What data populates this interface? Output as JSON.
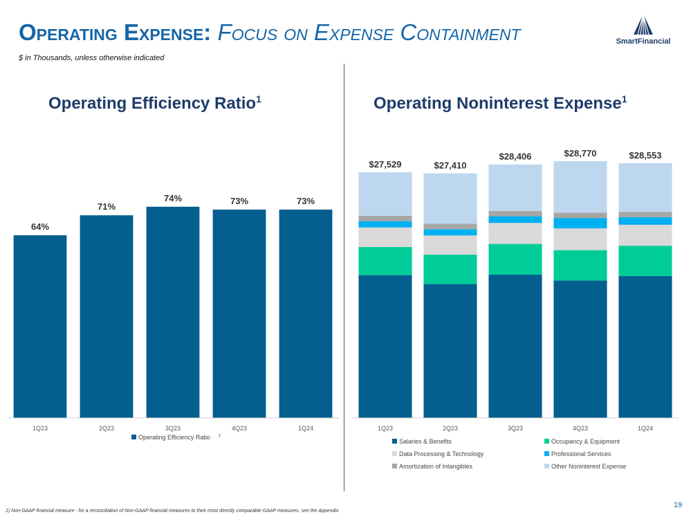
{
  "header": {
    "title_main": "Operating Expense:",
    "title_sub": "Focus on Expense Containment",
    "subtitle": "$ in Thousands, unless otherwise indicated"
  },
  "logo": {
    "name": "SmartFinancial"
  },
  "left_title": {
    "text": "Operating Efficiency Ratio",
    "sup": "1"
  },
  "right_title": {
    "text": "Operating Noninterest Expense",
    "sup": "1"
  },
  "footnote": "1) Non-GAAP financial measure - for a reconciliation of Non-GAAP financial measures to their most directly comparable GAAP measures, see the Appendix",
  "page_number": "19",
  "colors": {
    "title_blue": "#1565a7",
    "navy": "#1d3b6a",
    "bar_blue": "#045e8f"
  },
  "chart_data": [
    {
      "type": "bar",
      "title": "Operating Efficiency Ratio",
      "categories": [
        "1Q23",
        "2Q23",
        "3Q23",
        "4Q23",
        "1Q24"
      ],
      "values": [
        64,
        71,
        74,
        73,
        73
      ],
      "labels": [
        "64%",
        "71%",
        "74%",
        "73%",
        "73%"
      ],
      "series_name": "Operating Efficiency Ratio",
      "legend_sup": "1",
      "ylim": [
        0,
        80
      ],
      "color": "#045e8f"
    },
    {
      "type": "bar",
      "stacked": true,
      "title": "Operating Noninterest Expense",
      "categories": [
        "1Q23",
        "2Q23",
        "3Q23",
        "4Q23",
        "1Q24"
      ],
      "totals": [
        27529,
        27410,
        28406,
        28770,
        28553
      ],
      "total_labels": [
        "$27,529",
        "$27,410",
        "$28,406",
        "$28,770",
        "$28,553"
      ],
      "ylim": [
        0,
        29000
      ],
      "series": [
        {
          "name": "Salaries & Benefits",
          "color": "#045e8f",
          "values": [
            16000,
            15000,
            16050,
            15400,
            15900
          ]
        },
        {
          "name": "Occupancy & Equipment",
          "color": "#00cc99",
          "values": [
            3150,
            3300,
            3450,
            3400,
            3400
          ]
        },
        {
          "name": "Data Processing & Technology",
          "color": "#d9d9d9",
          "values": [
            2200,
            2150,
            2350,
            2450,
            2350
          ]
        },
        {
          "name": "Professional Services",
          "color": "#00b0f0",
          "values": [
            700,
            700,
            750,
            1150,
            850
          ]
        },
        {
          "name": "Amortization of Intangibles",
          "color": "#a6a6a6",
          "values": [
            600,
            600,
            600,
            600,
            600
          ]
        },
        {
          "name": "Other Noninterest Expense",
          "color": "#bdd7ee",
          "values": [
            4879,
            5660,
            5206,
            5770,
            5453
          ]
        }
      ]
    }
  ]
}
